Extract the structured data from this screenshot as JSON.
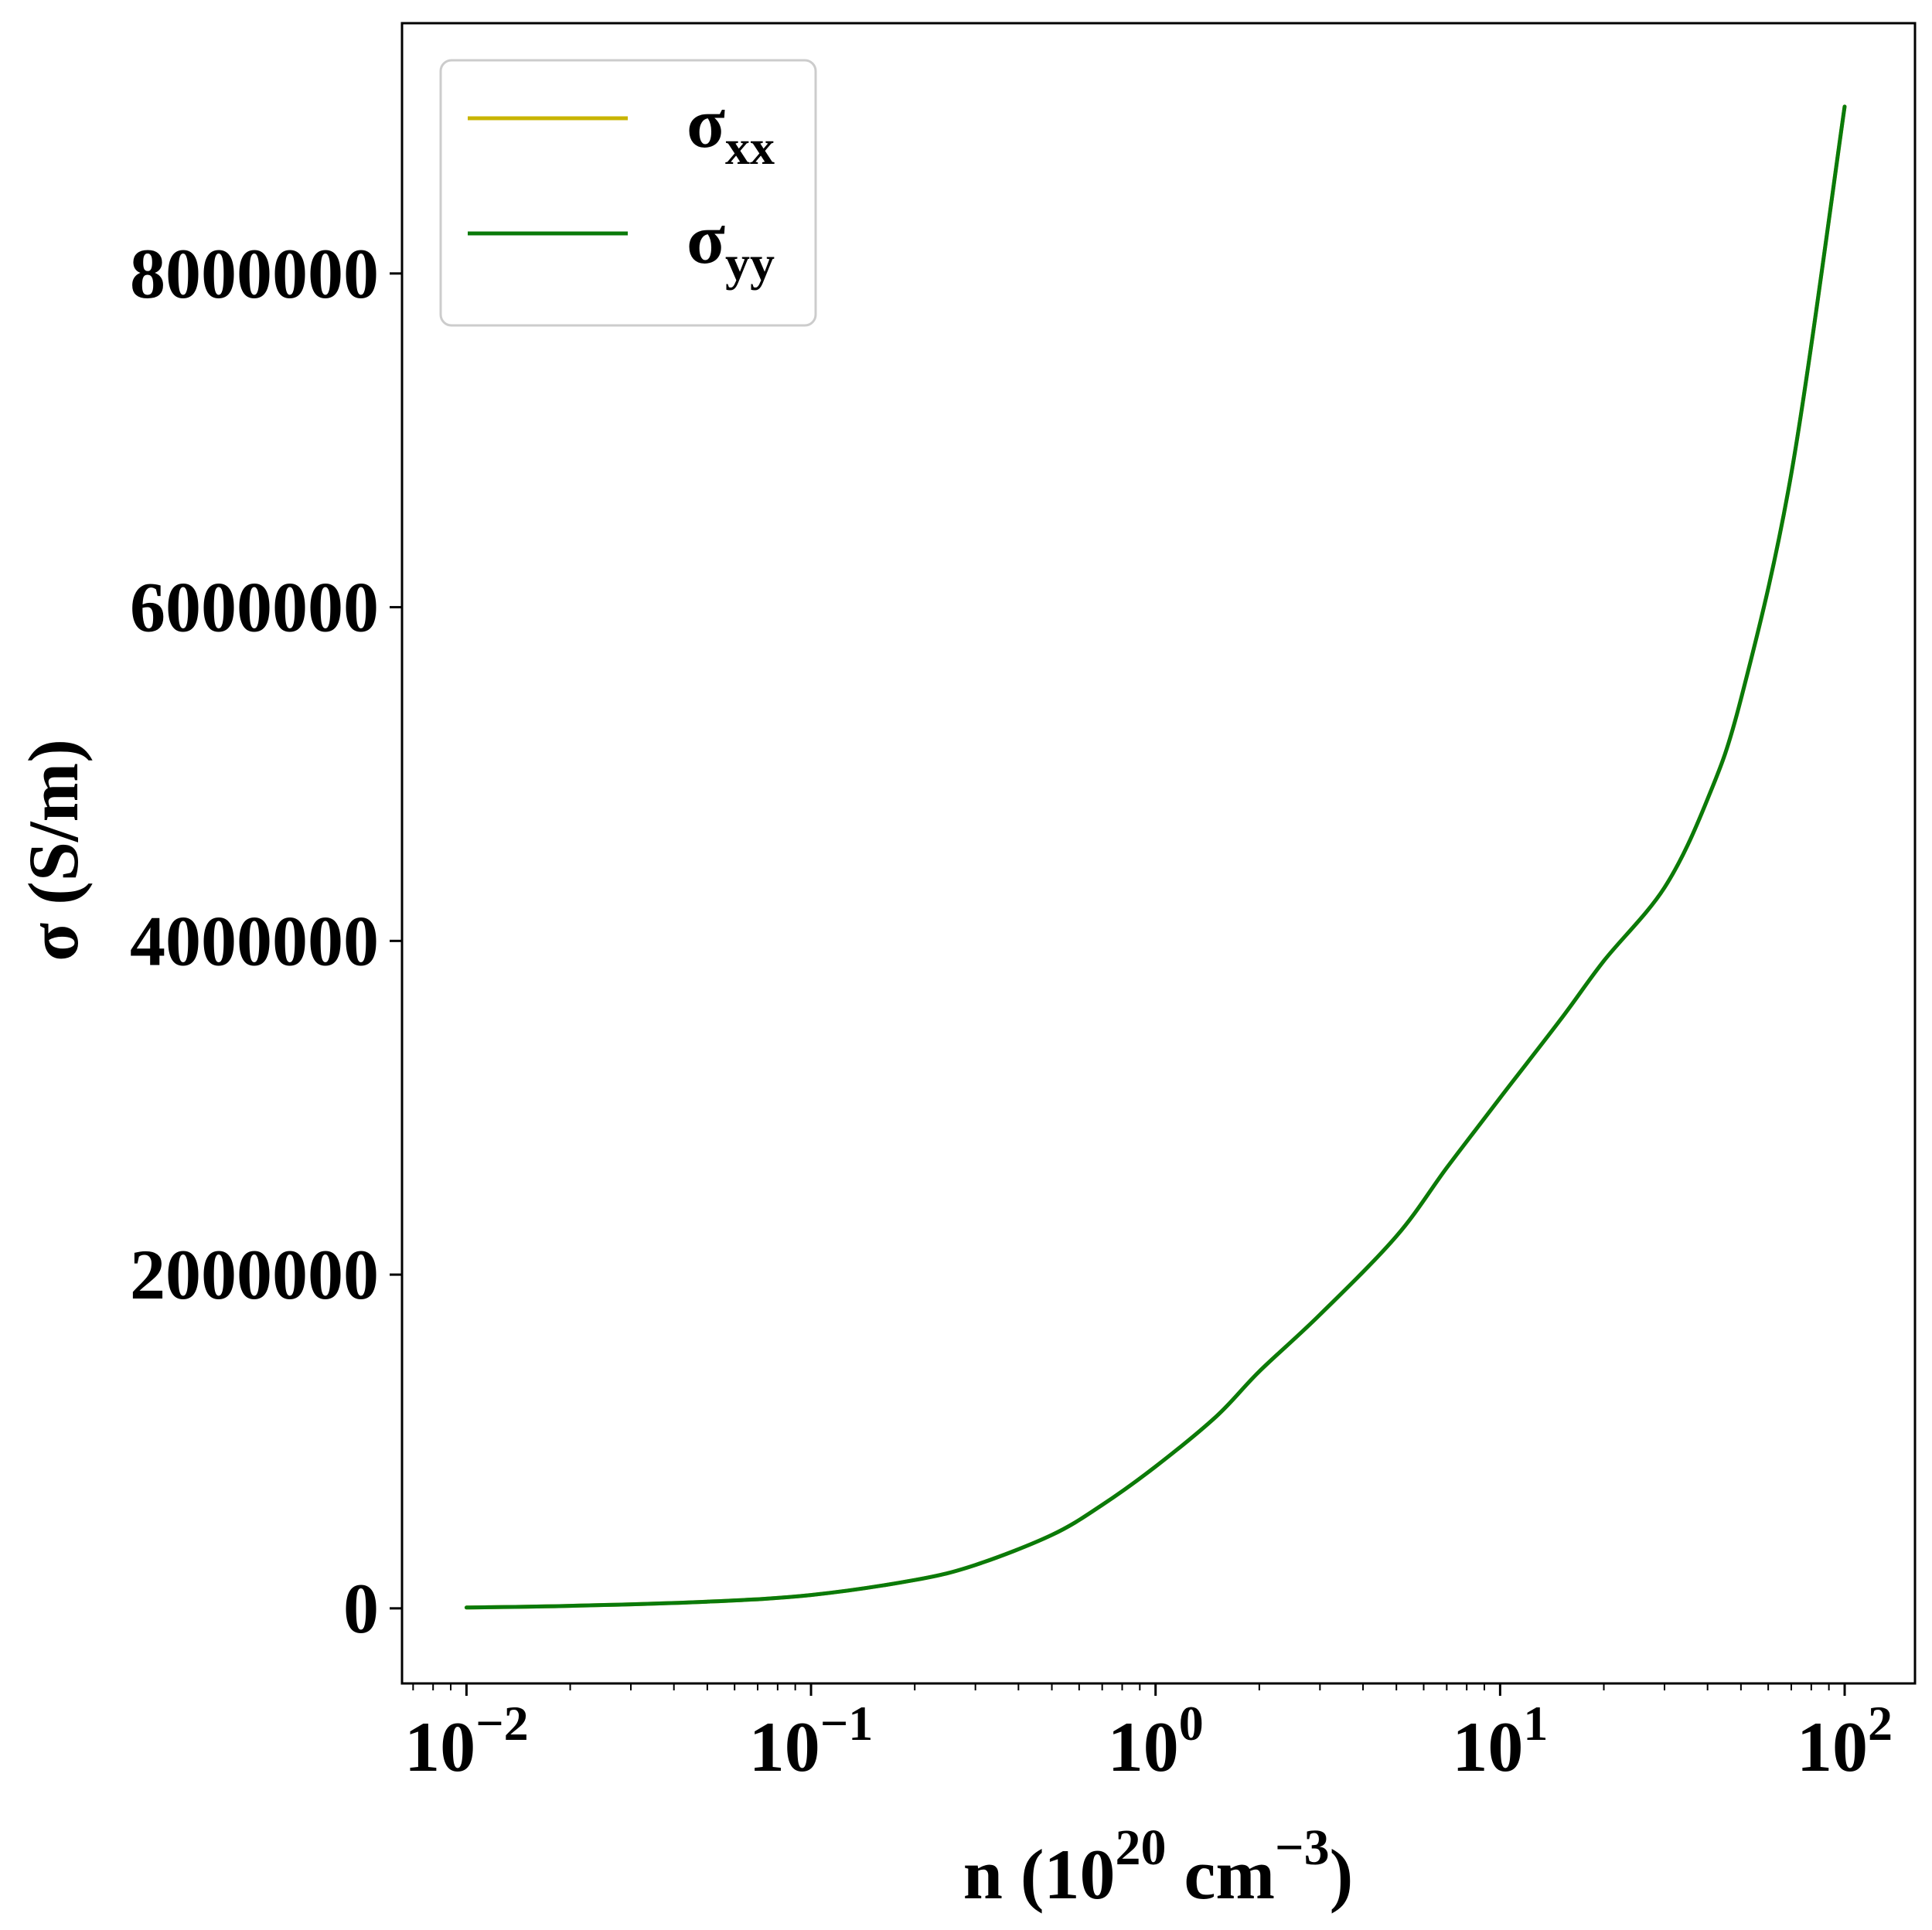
{
  "chart_data": {
    "type": "line",
    "title": "",
    "xlabel": {
      "base": "n (10",
      "exp1": "20",
      "mid": " cm",
      "exp2": "−3",
      "end": ")"
    },
    "ylabel": "σ (S/m)",
    "xscale": "log",
    "xlim": [
      0.0065,
      160
    ],
    "ylim": [
      -450000,
      9500000
    ],
    "x_ticks": [
      {
        "value": 0.01,
        "base": "10",
        "exp": "−2"
      },
      {
        "value": 0.1,
        "base": "10",
        "exp": "−1"
      },
      {
        "value": 1,
        "base": "10",
        "exp": "0"
      },
      {
        "value": 10,
        "base": "10",
        "exp": "1"
      },
      {
        "value": 100,
        "base": "10",
        "exp": "2"
      }
    ],
    "y_ticks": [
      {
        "value": 0,
        "label": "0"
      },
      {
        "value": 2000000,
        "label": "2000000"
      },
      {
        "value": 4000000,
        "label": "4000000"
      },
      {
        "value": 6000000,
        "label": "6000000"
      },
      {
        "value": 8000000,
        "label": "8000000"
      }
    ],
    "grid": false,
    "legend": {
      "placement": "top-left",
      "entries": [
        {
          "symbol": "σ",
          "sub": "xx"
        },
        {
          "symbol": "σ",
          "sub": "yy"
        }
      ]
    },
    "x": [
      0.01,
      0.02,
      0.05,
      0.1,
      0.2,
      0.3,
      0.5,
      0.7,
      1,
      1.5,
      2,
      3,
      5,
      7,
      10,
      15,
      20,
      30,
      40,
      50,
      70,
      100
    ],
    "series": [
      {
        "name": "σxx",
        "color": "#c8b400",
        "values": [
          5000,
          15000,
          40000,
          80000,
          170000,
          260000,
          440000,
          620000,
          850000,
          1150000,
          1420000,
          1760000,
          2230000,
          2640000,
          3060000,
          3530000,
          3880000,
          4320000,
          4850000,
          5450000,
          6800000,
          9000000
        ]
      },
      {
        "name": "σyy",
        "color": "#0a7a0a",
        "values": [
          5000,
          15000,
          40000,
          80000,
          170000,
          260000,
          440000,
          620000,
          850000,
          1150000,
          1420000,
          1760000,
          2230000,
          2640000,
          3060000,
          3530000,
          3880000,
          4320000,
          4850000,
          5450000,
          6800000,
          9000000
        ]
      }
    ]
  }
}
